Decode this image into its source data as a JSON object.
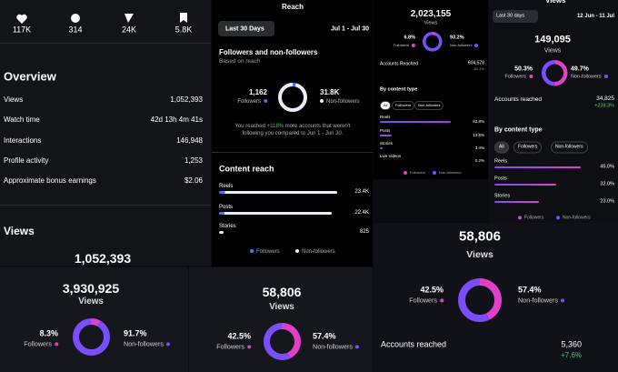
{
  "stats_panel": {
    "stats": [
      "117K",
      "314",
      "24K",
      "5.8K"
    ],
    "overview_title": "Overview",
    "rows": [
      [
        "Views",
        "1,052,393"
      ],
      [
        "Watch time",
        "42d 13h 4m 41s"
      ],
      [
        "Interactions",
        "146,948"
      ],
      [
        "Profile activity",
        "1,253"
      ],
      [
        "Approximate bonus earnings",
        "$2.06"
      ]
    ],
    "views_title": "Views",
    "views_total": "1,052,393"
  },
  "reach_panel": {
    "header": "Reach",
    "range_button": "Last 30 Days",
    "date_range": "Jul 1 - Jul 30",
    "section_title": "Followers and non-followers",
    "section_subtitle": "Based on reach",
    "donut": {
      "labels": [
        "Followers",
        "Non-followers"
      ],
      "values": [
        1162,
        31800
      ],
      "value_labels": [
        "1,162",
        "31.8K"
      ]
    },
    "note_prefix": "You reached ",
    "note_highlight": "+118%",
    "note_text": " more accounts that weren't following you compared to Jun 1 - Jun 30.",
    "content_title": "Content reach",
    "content": {
      "categories": [
        "Reels",
        "Posts",
        "Stories"
      ],
      "values": [
        23400,
        22400,
        825
      ],
      "value_labels": [
        "23.4K",
        "22.4K",
        "825"
      ]
    },
    "legend": [
      "Followers",
      "Non-followers"
    ]
  },
  "views_panel_a": {
    "total": "2,023,155",
    "total_label": "Views",
    "donut": {
      "labels": [
        "Followers",
        "Non-followers"
      ],
      "values": [
        6.8,
        93.2
      ],
      "value_labels": [
        "6.8%",
        "93.2%"
      ]
    },
    "accounts_label": "Accounts Reached",
    "accounts_value": "604,578",
    "accounts_change": "-62.1%",
    "content_title": "By content type",
    "filters": [
      "All",
      "Followers",
      "Non-followers"
    ],
    "content": {
      "categories": [
        "Reels",
        "Posts",
        "Stories",
        "Live Videos"
      ],
      "values": [
        82.8,
        13.6,
        3.4,
        0.2
      ],
      "value_labels": [
        "82.8%",
        "13.6%",
        "3.4%",
        "0.2%"
      ]
    },
    "legend": [
      "Followers",
      "Non-followers"
    ]
  },
  "views_panel_b": {
    "header": "Views",
    "range_button": "Last 30 days",
    "date_range": "12 Jun - 11 Jul",
    "total": "149,095",
    "total_label": "Views",
    "donut": {
      "labels": [
        "Followers",
        "Non-followers"
      ],
      "values": [
        50.3,
        49.7
      ],
      "value_labels": [
        "50.3%",
        "49.7%"
      ]
    },
    "accounts_label": "Accounts reached",
    "accounts_value": "34,825",
    "accounts_change": "+238.3%",
    "content_title": "By content type",
    "filters": [
      "All",
      "Followers",
      "Non-followers"
    ],
    "content": {
      "categories": [
        "Reels",
        "Posts",
        "Stories"
      ],
      "values": [
        45.0,
        32.0,
        23.0
      ],
      "value_labels": [
        "45.0%",
        "32.0%",
        "23.0%"
      ]
    },
    "legend": [
      "Followers",
      "Non-followers"
    ]
  },
  "card_a": {
    "total": "3,930,925",
    "total_label": "Views",
    "donut": {
      "labels": [
        "Followers",
        "Non-followers"
      ],
      "values": [
        8.3,
        91.7
      ],
      "value_labels": [
        "8.3%",
        "91.7%"
      ]
    }
  },
  "card_b": {
    "total": "58,806",
    "total_label": "Views",
    "donut": {
      "labels": [
        "Followers",
        "Non-followers"
      ],
      "values": [
        42.5,
        57.4
      ],
      "value_labels": [
        "42.5%",
        "57.4%"
      ]
    }
  },
  "card_c": {
    "total": "58,806",
    "total_label": "Views",
    "donut": {
      "labels": [
        "Followers",
        "Non-followers"
      ],
      "values": [
        42.5,
        57.4
      ],
      "value_labels": [
        "42.5%",
        "57.4%"
      ]
    },
    "accounts_label": "Accounts reached",
    "accounts_value": "5,360",
    "accounts_change": "+7.6%"
  }
}
